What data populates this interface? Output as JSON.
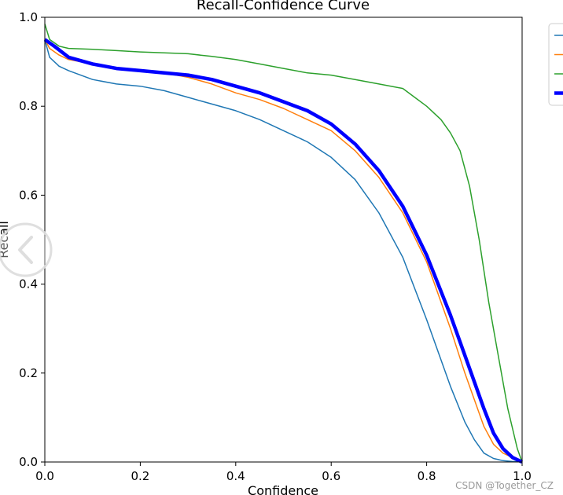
{
  "chart_data": {
    "type": "line",
    "title": "Recall-Confidence Curve",
    "xlabel": "Confidence",
    "ylabel": "Recall",
    "xlim": [
      0,
      1
    ],
    "ylim": [
      0,
      1
    ],
    "xticks": [
      "0.0",
      "0.2",
      "0.4",
      "0.6",
      "0.8",
      "1.0"
    ],
    "yticks": [
      "0.0",
      "0.2",
      "0.4",
      "0.6",
      "0.8",
      "1.0"
    ],
    "grid": false,
    "legend_position": "upper-right, outside plot",
    "series": [
      {
        "color": "#1f77b4",
        "line_width": "thin",
        "x": [
          0.0,
          0.01,
          0.03,
          0.05,
          0.1,
          0.15,
          0.2,
          0.25,
          0.3,
          0.35,
          0.4,
          0.45,
          0.5,
          0.55,
          0.6,
          0.65,
          0.7,
          0.75,
          0.8,
          0.85,
          0.88,
          0.9,
          0.92,
          0.94,
          0.96,
          0.98,
          1.0
        ],
        "y": [
          0.95,
          0.91,
          0.89,
          0.88,
          0.86,
          0.85,
          0.845,
          0.835,
          0.82,
          0.805,
          0.79,
          0.77,
          0.745,
          0.72,
          0.685,
          0.635,
          0.56,
          0.46,
          0.32,
          0.17,
          0.09,
          0.05,
          0.02,
          0.008,
          0.003,
          0.001,
          0.0
        ]
      },
      {
        "color": "#ff7f0e",
        "line_width": "thin",
        "x": [
          0.0,
          0.01,
          0.03,
          0.05,
          0.1,
          0.15,
          0.2,
          0.25,
          0.3,
          0.35,
          0.4,
          0.45,
          0.5,
          0.55,
          0.6,
          0.65,
          0.7,
          0.75,
          0.8,
          0.85,
          0.88,
          0.9,
          0.92,
          0.94,
          0.96,
          0.98,
          1.0
        ],
        "y": [
          0.95,
          0.93,
          0.915,
          0.905,
          0.895,
          0.885,
          0.88,
          0.875,
          0.865,
          0.85,
          0.83,
          0.815,
          0.795,
          0.77,
          0.745,
          0.7,
          0.64,
          0.56,
          0.45,
          0.3,
          0.2,
          0.14,
          0.08,
          0.04,
          0.02,
          0.01,
          0.0
        ]
      },
      {
        "color": "#2ca02c",
        "line_width": "thin",
        "x": [
          0.0,
          0.01,
          0.03,
          0.05,
          0.1,
          0.15,
          0.2,
          0.25,
          0.3,
          0.35,
          0.4,
          0.45,
          0.5,
          0.55,
          0.6,
          0.65,
          0.7,
          0.75,
          0.8,
          0.83,
          0.85,
          0.87,
          0.89,
          0.91,
          0.93,
          0.95,
          0.97,
          0.99,
          1.0
        ],
        "y": [
          0.985,
          0.95,
          0.935,
          0.93,
          0.928,
          0.925,
          0.922,
          0.92,
          0.918,
          0.912,
          0.905,
          0.895,
          0.885,
          0.875,
          0.87,
          0.86,
          0.85,
          0.84,
          0.8,
          0.77,
          0.74,
          0.7,
          0.62,
          0.5,
          0.36,
          0.24,
          0.12,
          0.03,
          0.0
        ]
      },
      {
        "color": "#0000ff",
        "line_width": "thick",
        "x": [
          0.0,
          0.02,
          0.05,
          0.1,
          0.15,
          0.2,
          0.25,
          0.3,
          0.35,
          0.4,
          0.45,
          0.5,
          0.55,
          0.6,
          0.65,
          0.7,
          0.75,
          0.8,
          0.85,
          0.88,
          0.9,
          0.92,
          0.94,
          0.96,
          0.98,
          1.0
        ],
        "y": [
          0.95,
          0.935,
          0.91,
          0.895,
          0.885,
          0.88,
          0.875,
          0.87,
          0.86,
          0.845,
          0.83,
          0.81,
          0.79,
          0.76,
          0.715,
          0.655,
          0.575,
          0.465,
          0.33,
          0.24,
          0.18,
          0.12,
          0.065,
          0.03,
          0.01,
          0.0
        ]
      }
    ]
  },
  "watermark": "CSDN @Together_CZ"
}
